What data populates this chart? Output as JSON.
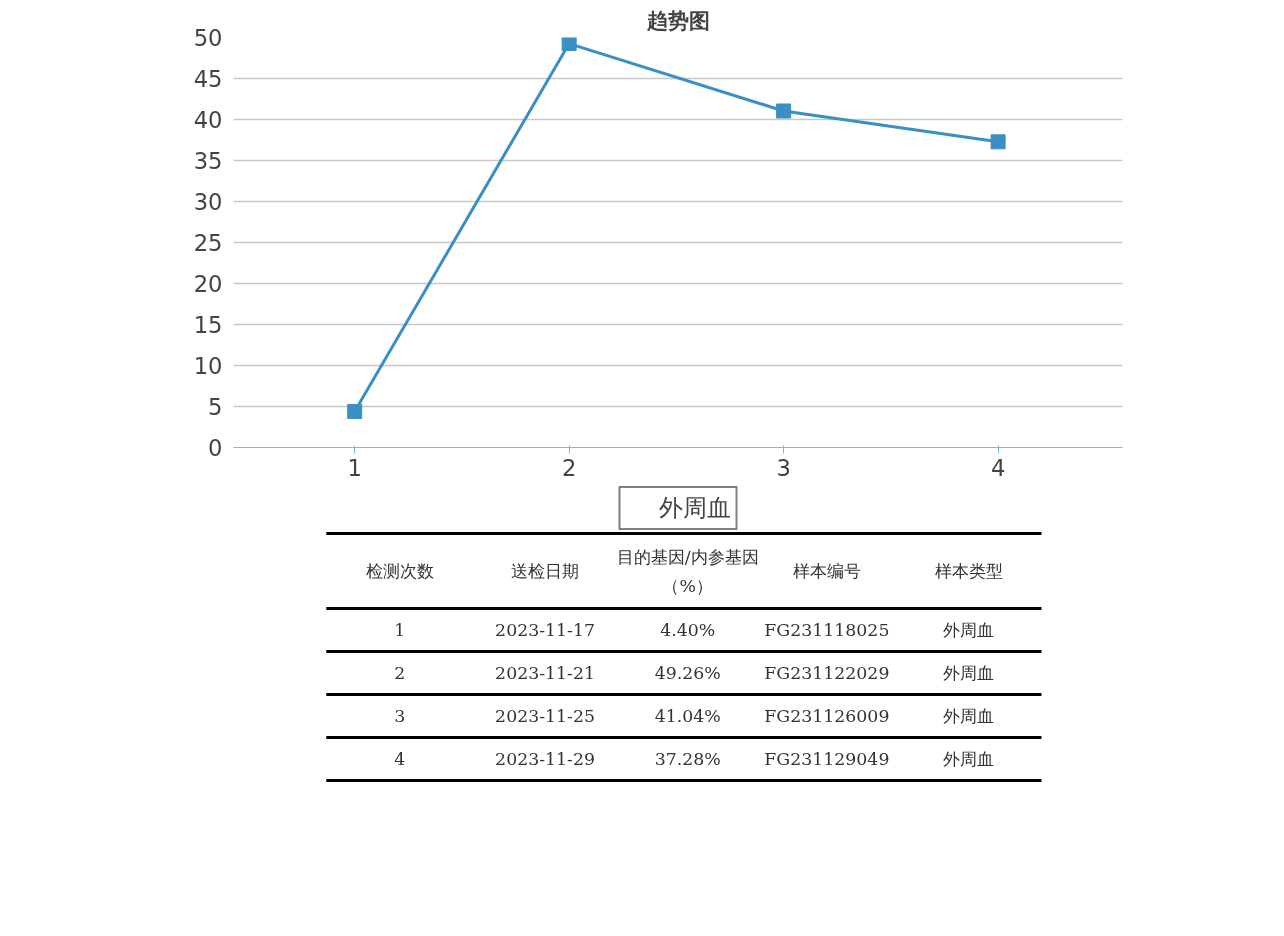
{
  "chart_data": {
    "type": "line",
    "title": "趋势图",
    "categories": [
      "1",
      "2",
      "3",
      "4"
    ],
    "series": [
      {
        "name": "外周血",
        "color": "#3a8fc4",
        "values": [
          4.4,
          49.26,
          41.04,
          37.28
        ]
      }
    ],
    "value_labels": [
      "4.40%",
      "49.26%",
      "41.04%",
      "37.28%"
    ],
    "ylim": [
      0,
      50
    ],
    "yticks": [
      0,
      5,
      10,
      15,
      20,
      25,
      30,
      35,
      40,
      45,
      50
    ],
    "grid": "y",
    "legend": "bottom",
    "marker": "square",
    "line_style": "solid",
    "annotations": [
      "检测次数",
      "送检日期",
      "目的基因/内参基因",
      "（%）",
      "样本编号",
      "样本类型",
      "1",
      "2023-11-17",
      "FG231118025",
      "外周血",
      "2",
      "2023-11-21",
      "FG231122029",
      "外周血",
      "3",
      "2023-11-25",
      "FG231126009",
      "外周血",
      "4",
      "2023-11-29",
      "FG231129049",
      "外周血"
    ]
  }
}
